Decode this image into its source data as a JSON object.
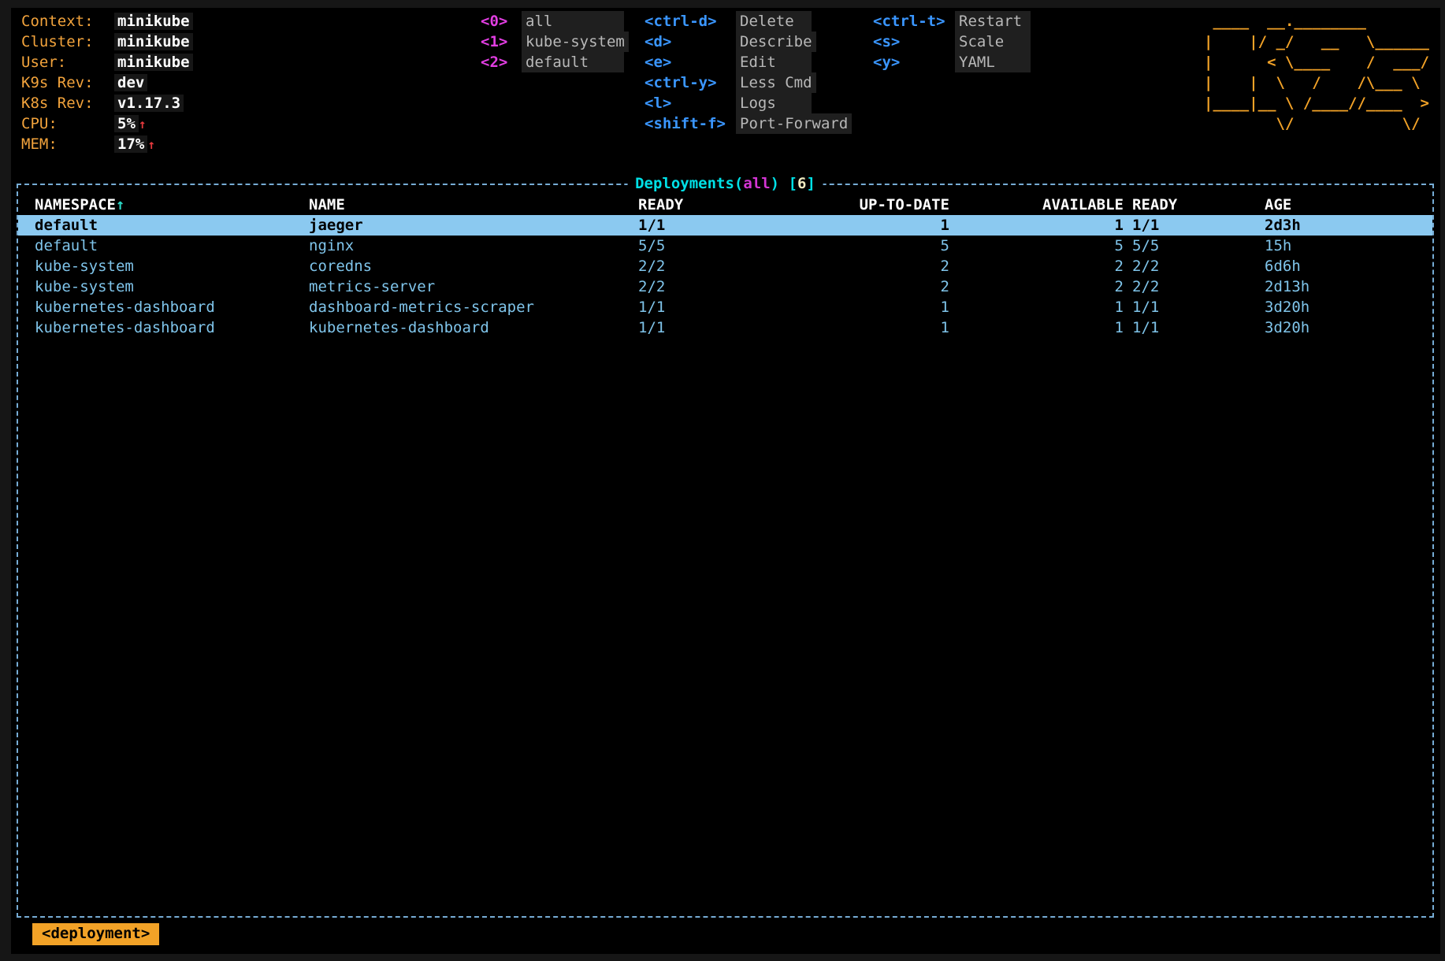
{
  "cluster_info": {
    "rows": [
      {
        "label": "Context:",
        "value": "minikube",
        "arrow": ""
      },
      {
        "label": "Cluster:",
        "value": "minikube",
        "arrow": ""
      },
      {
        "label": "User:",
        "value": "minikube",
        "arrow": ""
      },
      {
        "label": "K9s Rev:",
        "value": "dev",
        "arrow": ""
      },
      {
        "label": "K8s Rev:",
        "value": "v1.17.3",
        "arrow": ""
      },
      {
        "label": "CPU:",
        "value": "5%",
        "arrow": "↑"
      },
      {
        "label": "MEM:",
        "value": "17%",
        "arrow": "↑"
      }
    ]
  },
  "namespace_shortcuts": [
    {
      "key": "<0>",
      "label": "all"
    },
    {
      "key": "<1>",
      "label": "kube-system"
    },
    {
      "key": "<2>",
      "label": "default"
    }
  ],
  "menus": {
    "column1": [
      {
        "key": "<ctrl-d>",
        "label": "Delete"
      },
      {
        "key": "<d>",
        "label": "Describe"
      },
      {
        "key": "<e>",
        "label": "Edit"
      },
      {
        "key": "<ctrl-y>",
        "label": "Less Cmd"
      },
      {
        "key": "<l>",
        "label": "Logs"
      },
      {
        "key": "<shift-f>",
        "label": "Port-Forward"
      }
    ],
    "column2": [
      {
        "key": "<ctrl-t>",
        "label": "Restart"
      },
      {
        "key": "<s>",
        "label": "Scale"
      },
      {
        "key": "<y>",
        "label": "YAML"
      }
    ]
  },
  "logo_lines": [
    " ____  __.________       ",
    "|    |/ _/   __   \\______",
    "|      < \\____    /  ___/",
    "|    |  \\   /    /\\___ \\ ",
    "|____|__ \\ /____//____  >",
    "        \\/            \\/ "
  ],
  "table": {
    "title": {
      "resource": "Deployments(",
      "namespace": "all",
      "close_paren": ") ",
      "bracket_open": "[",
      "count": "6",
      "bracket_close": "]"
    },
    "headers": {
      "namespace": "NAMESPACE",
      "sort_arrow": "↑",
      "name": "NAME",
      "ready": "READY",
      "up_to_date": "UP-TO-DATE",
      "available": "AVAILABLE",
      "ready2": "READY",
      "age": "AGE"
    },
    "selected_index": 0,
    "rows": [
      {
        "namespace": "default",
        "name": "jaeger",
        "ready": "1/1",
        "up_to_date": "1",
        "available": "1",
        "ready2": "1/1",
        "age": "2d3h"
      },
      {
        "namespace": "default",
        "name": "nginx",
        "ready": "5/5",
        "up_to_date": "5",
        "available": "5",
        "ready2": "5/5",
        "age": "15h"
      },
      {
        "namespace": "kube-system",
        "name": "coredns",
        "ready": "2/2",
        "up_to_date": "2",
        "available": "2",
        "ready2": "2/2",
        "age": "6d6h"
      },
      {
        "namespace": "kube-system",
        "name": "metrics-server",
        "ready": "2/2",
        "up_to_date": "2",
        "available": "2",
        "ready2": "2/2",
        "age": "2d13h"
      },
      {
        "namespace": "kubernetes-dashboard",
        "name": "dashboard-metrics-scraper",
        "ready": "1/1",
        "up_to_date": "1",
        "available": "1",
        "ready2": "1/1",
        "age": "3d20h"
      },
      {
        "namespace": "kubernetes-dashboard",
        "name": "kubernetes-dashboard",
        "ready": "1/1",
        "up_to_date": "1",
        "available": "1",
        "ready2": "1/1",
        "age": "3d20h"
      }
    ]
  },
  "footer": {
    "breadcrumb": "<deployment>"
  },
  "colors": {
    "label_orange": "#f2a33c",
    "logo_orange": "#f2a227",
    "key_blue": "#3a96ff",
    "shortcut_magenta": "#e23ee2",
    "title_cyan": "#00e0e6",
    "title_magenta": "#d435d4",
    "count_cream": "#f0eac0",
    "row_blue": "#7fc4ea",
    "selected_row_bg": "#8bc9f0",
    "border_blue": "#76acd5",
    "arrow_red": "#e5393d",
    "sort_arrow_teal": "#2bd9c7",
    "badge_orange_bg": "#f2a227"
  }
}
